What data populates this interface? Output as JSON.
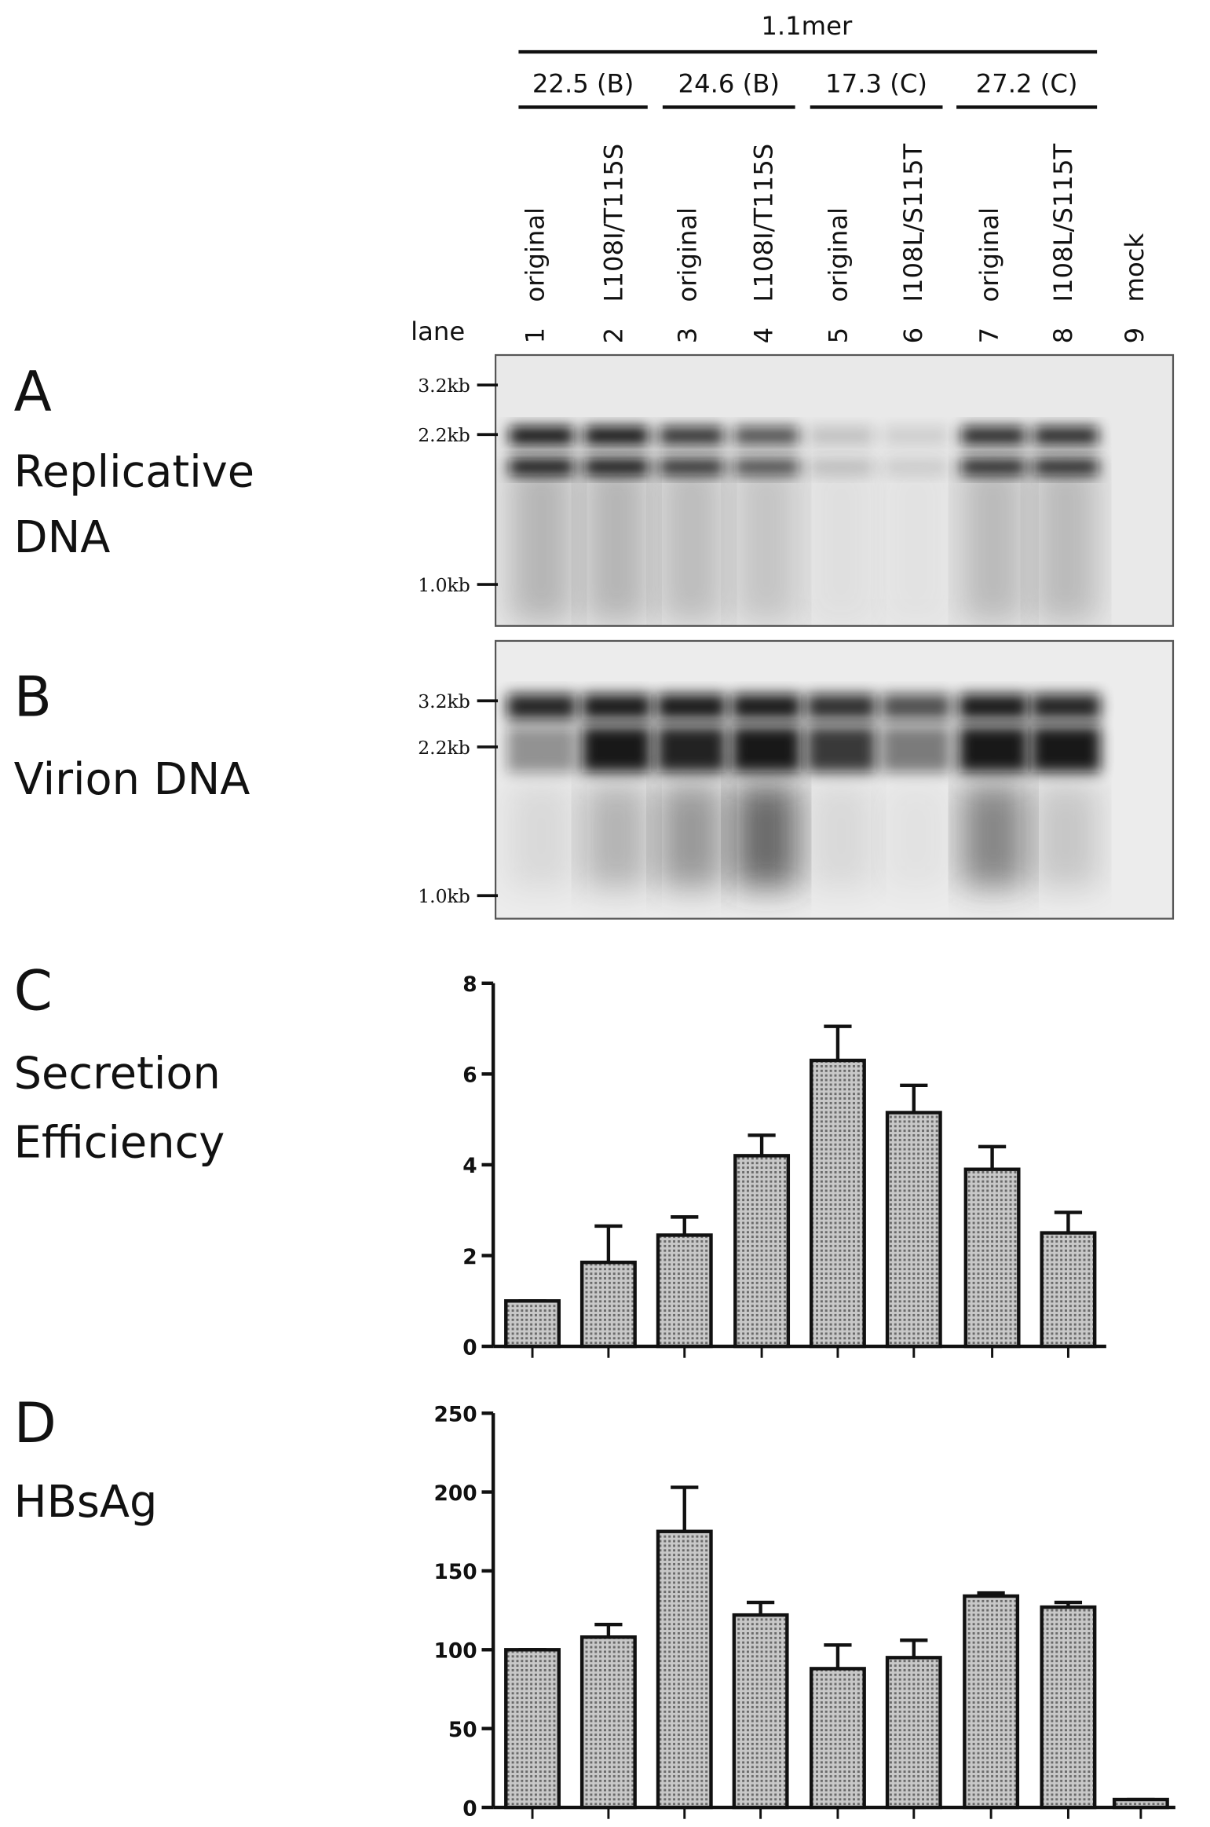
{
  "header": {
    "title": "1.1mer",
    "groups": [
      "22.5 (B)",
      "24.6 (B)",
      "17.3 (C)",
      "27.2 (C)"
    ],
    "lane_title": "lane",
    "lanes": [
      {
        "number": "1",
        "label": "original"
      },
      {
        "number": "2",
        "label": "L108I/T115S"
      },
      {
        "number": "3",
        "label": "original"
      },
      {
        "number": "4",
        "label": "L108I/T115S"
      },
      {
        "number": "5",
        "label": "original"
      },
      {
        "number": "6",
        "label": "I108L/S115T"
      },
      {
        "number": "7",
        "label": "original"
      },
      {
        "number": "8",
        "label": "I108L/S115T"
      },
      {
        "number": "9",
        "label": "mock"
      }
    ]
  },
  "blots": [
    {
      "letter": "A",
      "label": [
        "Replicative",
        "DNA"
      ],
      "markers": [
        "3.2kb",
        "2.2kb",
        "1.0kb"
      ]
    },
    {
      "letter": "B",
      "label": [
        "Virion DNA"
      ],
      "markers": [
        "3.2kb",
        "2.2kb",
        "1.0kb"
      ]
    }
  ],
  "chart_data": [
    {
      "type": "bar",
      "letter": "C",
      "label": [
        "Secretion",
        "Efficiency"
      ],
      "values": [
        1.0,
        1.85,
        2.45,
        4.2,
        6.3,
        5.15,
        3.9,
        2.5
      ],
      "errors": [
        0,
        0.8,
        0.4,
        0.45,
        0.75,
        0.6,
        0.5,
        0.45
      ],
      "ylim": [
        0,
        8
      ],
      "yticks": [
        0,
        2,
        4,
        6,
        8
      ],
      "color": "#a8a8a8"
    },
    {
      "type": "bar",
      "letter": "D",
      "label": [
        "HBsAg"
      ],
      "values": [
        100,
        108,
        175,
        122,
        88,
        95,
        134,
        127,
        5
      ],
      "errors": [
        0,
        8,
        28,
        8,
        15,
        11,
        2,
        3,
        0
      ],
      "ylim": [
        0,
        250
      ],
      "yticks": [
        0,
        50,
        100,
        150,
        200,
        250
      ],
      "color": "#b0b0b0"
    }
  ]
}
